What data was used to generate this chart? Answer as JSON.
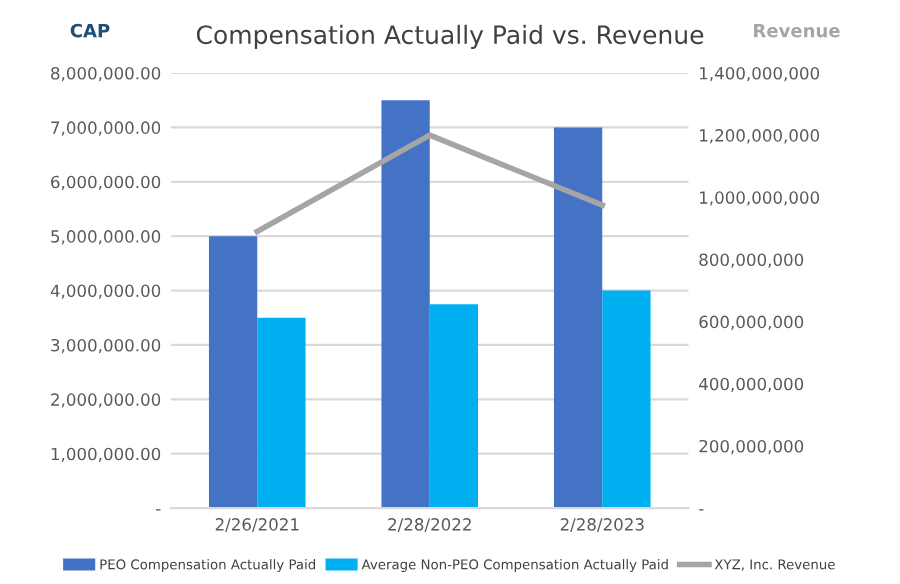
{
  "chart_data": {
    "type": "bar",
    "title": "Compensation Actually Paid vs. Revenue",
    "ylabel": "CAP",
    "y2label": "Revenue",
    "categories": [
      "2/26/2021",
      "2/28/2022",
      "2/28/2023"
    ],
    "series": [
      {
        "name": "PEO Compensation Actually Paid",
        "color": "#4472c4",
        "values": [
          5000000,
          7500000,
          7000000
        ]
      },
      {
        "name": "Average Non-PEO Compensation Actually Paid",
        "color": "#00b0f0",
        "values": [
          3500000,
          3750000,
          4000000
        ]
      },
      {
        "name": "XYZ, Inc. Revenue",
        "color": "#a5a5a5",
        "type": "line",
        "axis": "y2",
        "values": [
          890000000,
          1200000000,
          975000000
        ]
      }
    ],
    "ylim": [
      0,
      8000000
    ],
    "yticks": [
      {
        "value": 0,
        "label": "-"
      },
      {
        "value": 1000000,
        "label": "1,000,000.00"
      },
      {
        "value": 2000000,
        "label": "2,000,000.00"
      },
      {
        "value": 3000000,
        "label": "3,000,000.00"
      },
      {
        "value": 4000000,
        "label": "4,000,000.00"
      },
      {
        "value": 5000000,
        "label": "5,000,000.00"
      },
      {
        "value": 6000000,
        "label": "6,000,000.00"
      },
      {
        "value": 7000000,
        "label": "7,000,000.00"
      },
      {
        "value": 8000000,
        "label": "8,000,000.00"
      }
    ],
    "y2lim": [
      0,
      1400000000
    ],
    "y2ticks": [
      {
        "value": 0,
        "label": "-"
      },
      {
        "value": 200000000,
        "label": "200,000,000"
      },
      {
        "value": 400000000,
        "label": "400,000,000"
      },
      {
        "value": 600000000,
        "label": "600,000,000"
      },
      {
        "value": 800000000,
        "label": "800,000,000"
      },
      {
        "value": 1000000000,
        "label": "1,000,000,000"
      },
      {
        "value": 1200000000,
        "label": "1,200,000,000"
      },
      {
        "value": 1400000000,
        "label": "1,400,000,000"
      }
    ],
    "grid": "y",
    "legend": "bottom"
  }
}
